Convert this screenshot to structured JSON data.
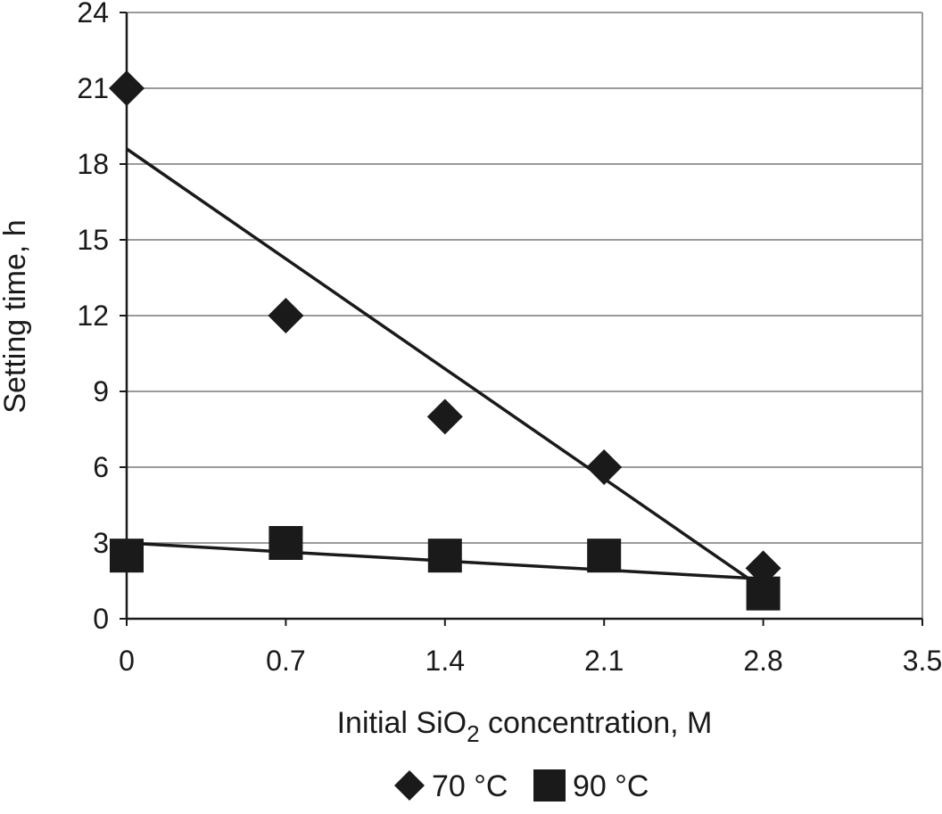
{
  "chart_data": {
    "type": "scatter",
    "xlabel": {
      "prefix": "Initial SiO",
      "subscript": "2",
      "suffix": " concentration, M"
    },
    "ylabel": "Setting time, h",
    "xlim": [
      0,
      3.5
    ],
    "ylim": [
      0,
      24
    ],
    "x_ticks": [
      0,
      0.7,
      1.4,
      2.1,
      2.8,
      3.5
    ],
    "x_tick_labels": [
      "0",
      "0.7",
      "1.4",
      "2.1",
      "2.8",
      "3.5"
    ],
    "y_ticks": [
      0,
      3,
      6,
      9,
      12,
      15,
      18,
      21,
      24
    ],
    "y_tick_labels": [
      "0",
      "3",
      "6",
      "9",
      "12",
      "15",
      "18",
      "21",
      "24"
    ],
    "grid": "horizontal",
    "legend_position": "bottom",
    "series": [
      {
        "name": "70 °C",
        "marker": "diamond",
        "color": "#1a1a1a",
        "x": [
          0,
          0.7,
          1.4,
          2.1,
          2.8
        ],
        "y": [
          21,
          12,
          8,
          6,
          2
        ],
        "trendline": {
          "x": [
            0,
            2.75
          ],
          "y": [
            18.6,
            1.5
          ]
        }
      },
      {
        "name": "90 °C",
        "marker": "square",
        "color": "#1a1a1a",
        "x": [
          0,
          0.7,
          1.4,
          2.1,
          2.8
        ],
        "y": [
          2.5,
          3,
          2.5,
          2.5,
          1
        ],
        "trendline": {
          "x": [
            0,
            2.75
          ],
          "y": [
            3,
            1.6
          ]
        }
      }
    ]
  }
}
